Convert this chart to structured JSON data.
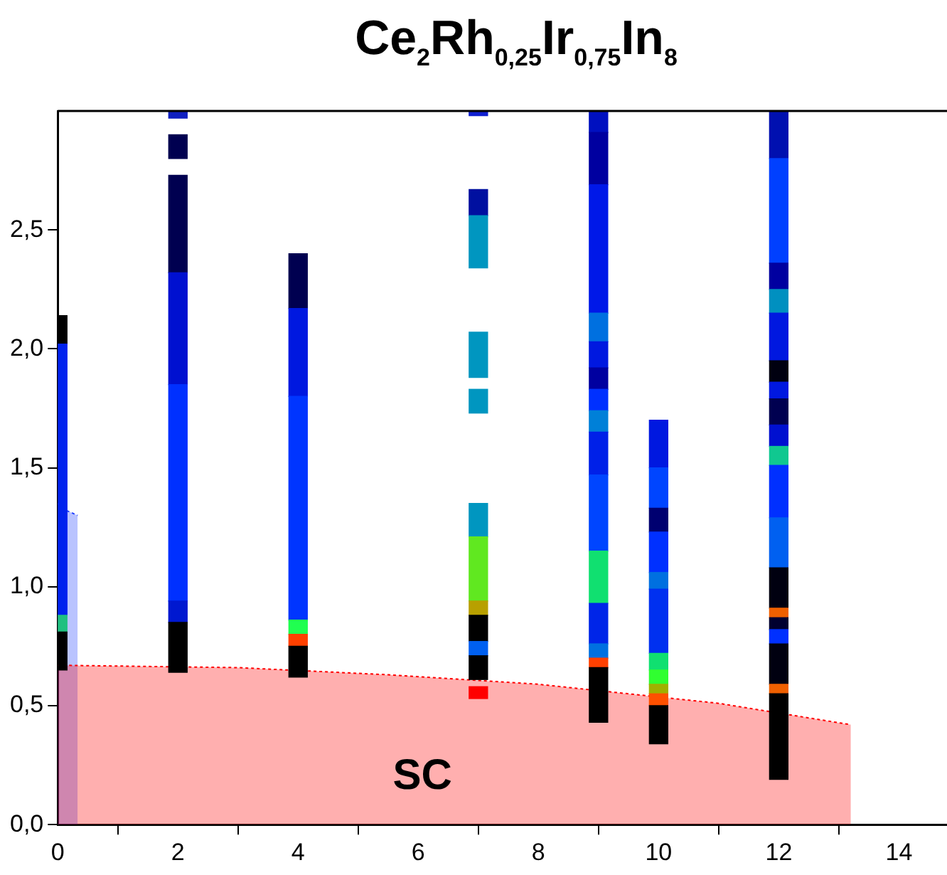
{
  "chart_data": {
    "type": "bar",
    "title": "Ce$_{2}$Rh$_{0,25}$Ir$_{0,75}$In$_{8}$",
    "xlim": [
      0,
      14.8
    ],
    "xticks": [
      0,
      2,
      4,
      6,
      8,
      10,
      12,
      14
    ],
    "ylim": [
      0,
      3.0
    ],
    "yticks": [
      {
        "value": 0,
        "label": "0,0"
      },
      {
        "value": 0.5,
        "label": "0,5"
      },
      {
        "value": 1.0,
        "label": "1,0"
      },
      {
        "value": 1.5,
        "label": "1,5"
      },
      {
        "value": 2.0,
        "label": "2,0"
      },
      {
        "value": 2.5,
        "label": "2,5"
      }
    ],
    "legend": false,
    "annotations": [
      "SC"
    ],
    "series": [
      {
        "x": [
          0,
          2,
          4,
          7,
          9,
          10,
          12
        ],
        "base": [
          0.65,
          0.64,
          0.62,
          0.53,
          0.43,
          0.34,
          0.19
        ],
        "values": [
          0.16,
          0.21,
          0.13,
          0.05,
          0.23,
          0.16,
          0.36
        ],
        "colors": [
          "#000000",
          "#000000",
          "#000000",
          "#ff0000",
          "#000000",
          "#000000",
          "#000000"
        ]
      },
      {
        "x": [
          0,
          2,
          4,
          7,
          9,
          10,
          12
        ],
        "base": [
          0.81,
          0.85,
          0.75,
          0.61,
          0.66,
          0.5,
          0.55
        ],
        "values": [
          0.07,
          0.09,
          0.05,
          0.1,
          0.04,
          0.05,
          0.04
        ],
        "colors": [
          "#20c080",
          "#0018d0",
          "#ff4000",
          "#000000",
          "#ff4000",
          "#ff5000",
          "#f06000"
        ]
      },
      {
        "x": [
          0,
          2,
          4,
          7,
          9,
          10,
          12
        ],
        "base": [
          0.88,
          0.94,
          0.8,
          0.71,
          0.7,
          0.55,
          0.59
        ],
        "values": [
          1.14,
          0.91,
          0.06,
          0.06,
          0.06,
          0.04,
          0.17
        ],
        "colors": [
          "#0022ee",
          "#0030ff",
          "#20ff50",
          "#0060f0",
          "#0070e0",
          "#a0b000",
          "#000010"
        ]
      },
      {
        "x": [
          0,
          2,
          4,
          7,
          9,
          10,
          12
        ],
        "base": [
          2.02,
          1.85,
          0.86,
          0.77,
          0.76,
          0.59,
          0.76
        ],
        "values": [
          0.12,
          0.47,
          0.94,
          0.11,
          0.17,
          0.06,
          0.06
        ],
        "colors": [
          "#000000",
          "#0010d0",
          "#0035ff",
          "#000000",
          "#0025e8",
          "#30ff30",
          "#0030ff"
        ]
      },
      {
        "x": [
          2,
          4,
          7,
          9,
          10,
          12
        ],
        "base": [
          2.32,
          1.8,
          0.88,
          0.93,
          0.65,
          0.82
        ],
        "values": [
          0.41,
          0.37,
          0.06,
          0.22,
          0.07,
          0.05
        ],
        "colors": [
          "#000050",
          "#0018e0",
          "#b8a000",
          "#10e070",
          "#10e070",
          "#000030"
        ]
      },
      {
        "x": [
          2,
          4,
          7,
          9,
          10,
          12
        ],
        "base": [
          2.8,
          2.17,
          0.94,
          1.15,
          0.72,
          0.87
        ],
        "values": [
          0.1,
          0.23,
          0.27,
          0.32,
          0.27,
          0.04
        ],
        "colors": [
          "#000050",
          "#000050",
          "#60e820",
          "#0045ff",
          "#0030f0",
          "#f06000"
        ]
      },
      {
        "x": [
          2,
          7,
          9,
          10,
          12
        ],
        "base": [
          2.97,
          1.21,
          1.47,
          0.99,
          0.91
        ],
        "values": [
          0.03,
          0.14,
          0.18,
          0.07,
          0.17
        ],
        "colors": [
          "#1020c0",
          "#0096c0",
          "#0020e8",
          "#0070e0",
          "#000010"
        ]
      },
      {
        "x": [
          7,
          9,
          10,
          12
        ],
        "base": [
          1.73,
          1.65,
          1.06,
          1.08
        ],
        "values": [
          0.1,
          0.09,
          0.17,
          0.21
        ],
        "colors": [
          "#0096c0",
          "#0080d8",
          "#0030ff",
          "#0060f0"
        ]
      },
      {
        "x": [
          7,
          9,
          10,
          12
        ],
        "base": [
          1.88,
          1.74,
          1.23,
          1.29
        ],
        "values": [
          0.19,
          0.09,
          0.1,
          0.22
        ],
        "colors": [
          "#0096c0",
          "#0030ff",
          "#000070",
          "#0030ff"
        ]
      },
      {
        "x": [
          7,
          9,
          10,
          12
        ],
        "base": [
          2.34,
          1.83,
          1.33,
          1.51
        ],
        "values": [
          0.22,
          0.09,
          0.17,
          0.08
        ],
        "colors": [
          "#0096c0",
          "#0000a0",
          "#0045ff",
          "#10c890"
        ]
      },
      {
        "x": [
          7,
          9,
          10,
          12
        ],
        "base": [
          2.56,
          1.92,
          1.5,
          1.59
        ],
        "values": [
          0.11,
          0.11,
          0.2,
          0.09
        ],
        "colors": [
          "#0010a0",
          "#0018e0",
          "#0018e0",
          "#0010d0"
        ]
      },
      {
        "x": [
          7,
          9,
          12
        ],
        "base": [
          2.98,
          2.03,
          1.68
        ],
        "values": [
          0.02,
          0.12,
          0.11
        ],
        "colors": [
          "#1020d0",
          "#0070e0",
          "#000050"
        ]
      },
      {
        "x": [
          9,
          12
        ],
        "base": [
          2.15,
          1.79
        ],
        "values": [
          0.54,
          0.07
        ],
        "colors": [
          "#0018e8",
          "#0018e0"
        ]
      },
      {
        "x": [
          9,
          12
        ],
        "base": [
          2.69,
          1.86
        ],
        "values": [
          0.22,
          0.09
        ],
        "colors": [
          "#0000a0",
          "#000010"
        ]
      },
      {
        "x": [
          9,
          12
        ],
        "base": [
          2.91,
          1.95
        ],
        "values": [
          0.09,
          0.2
        ],
        "colors": [
          "#0010c0",
          "#0018e0"
        ]
      },
      {
        "x": [
          12
        ],
        "base": [
          2.15
        ],
        "values": [
          0.1
        ],
        "colors": [
          "#0090c0"
        ]
      },
      {
        "x": [
          12
        ],
        "base": [
          2.25
        ],
        "values": [
          0.11
        ],
        "colors": [
          "#0000a0"
        ]
      },
      {
        "x": [
          12
        ],
        "base": [
          2.36
        ],
        "values": [
          0.44
        ],
        "colors": [
          "#0040ff"
        ]
      },
      {
        "x": [
          12
        ],
        "base": [
          2.8
        ],
        "values": [
          0.2
        ],
        "colors": [
          "#0010b0"
        ]
      },
      {
        "type": "area",
        "color": "#ff0000",
        "x": [
          0,
          3,
          5.5,
          8,
          11,
          13.2
        ],
        "values": [
          0.67,
          0.66,
          0.63,
          0.59,
          0.51,
          0.42
        ]
      },
      {
        "type": "area",
        "color": "#2040ff",
        "x": [
          0,
          0.15,
          0.33
        ],
        "values": [
          1.35,
          1.32,
          1.3
        ]
      }
    ]
  }
}
